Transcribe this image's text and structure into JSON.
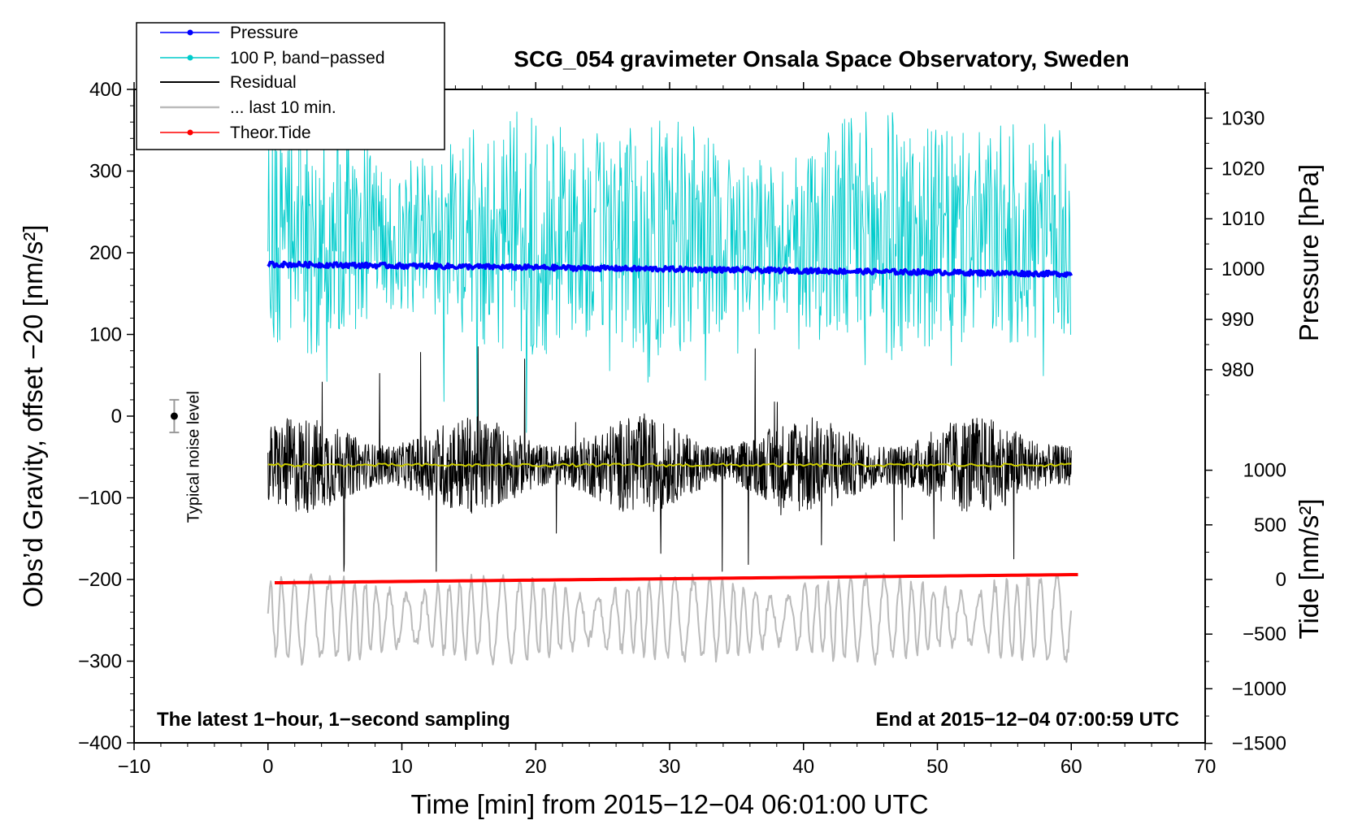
{
  "chart_data": {
    "type": "line",
    "title": "SCG_054 gravimeter Onsala Space Observatory, Sweden",
    "xlabel": "Time [min] from 2015−12−04 06:01:00 UTC",
    "ylabel": "Obs’d Gravity, offset −20 [nm/s²]",
    "ylabel_right_top": "Pressure [hPa]",
    "ylabel_right_bottom": "Tide [nm/s²]",
    "xlim": [
      -10,
      70
    ],
    "ylim": [
      -400,
      400
    ],
    "xticks": [
      -10,
      0,
      10,
      20,
      30,
      40,
      50,
      60,
      70
    ],
    "xtick_labels": [
      "−10",
      "0",
      "10",
      "20",
      "30",
      "40",
      "50",
      "60",
      "70"
    ],
    "yticks": [
      400,
      300,
      200,
      100,
      0,
      -100,
      -200,
      -300,
      -400
    ],
    "ytick_labels": [
      "400",
      "300",
      "200",
      "100",
      "0",
      "−100",
      "−200",
      "−300",
      "−400"
    ],
    "pressure_axis": {
      "gravity_per_hpa": 2.0,
      "offset_at_1000hpa": 180,
      "ticks": [
        1030,
        1020,
        1010,
        1000,
        990,
        980
      ],
      "tick_labels": [
        "1030",
        "1020",
        "1010",
        "1000",
        "990",
        "980"
      ]
    },
    "tide_axis": {
      "gravity_per_nms2": 0.0535,
      "offset_at_zero": -200,
      "ticks": [
        1000,
        500,
        0,
        -500,
        -1000,
        -1500
      ],
      "tick_labels": [
        "1000",
        "500",
        "0",
        "−500",
        "−1000",
        "−1500"
      ]
    },
    "legend": {
      "position": "top-left",
      "entries": [
        {
          "label": "Pressure",
          "color": "#0000ff",
          "marker": true
        },
        {
          "label": "100 P, band−passed",
          "color": "#00cccc",
          "marker": true
        },
        {
          "label": "Residual",
          "color": "#000000",
          "marker": false
        },
        {
          "label": "... last 10 min.",
          "color": "#bbbbbb",
          "marker": false
        },
        {
          "label": "Theor.Tide",
          "color": "#ff0000",
          "marker": true
        }
      ]
    },
    "series": [
      {
        "name": "Pressure",
        "color": "#0000ff",
        "x_range": [
          0,
          60
        ],
        "y_start": 186,
        "y_end": 174,
        "unit": "gravity-scale"
      },
      {
        "name": "100 P, band−passed",
        "color": "#00cccc",
        "x_range": [
          0,
          60
        ],
        "center": 220,
        "amplitude": 140,
        "unit": "gravity-scale"
      },
      {
        "name": "Residual",
        "color": "#000000",
        "x_range": [
          0,
          60
        ],
        "center": -60,
        "amplitude": 60,
        "unit": "gravity-scale"
      },
      {
        "name": "Residual smoothed",
        "color": "#cccc00",
        "x_range": [
          0,
          60
        ],
        "center": -60,
        "amplitude": 2,
        "unit": "gravity-scale"
      },
      {
        "name": "... last 10 min.",
        "color": "#bbbbbb",
        "x_range": [
          0,
          60
        ],
        "center": -248,
        "amplitude": 50,
        "unit": "gravity-scale"
      },
      {
        "name": "Theor.Tide",
        "color": "#ff0000",
        "x_range": [
          0.5,
          60.5
        ],
        "y_start": -204,
        "y_end": -194,
        "unit": "gravity-scale"
      }
    ],
    "noise_marker": {
      "x": -7,
      "y": 0,
      "err": 20,
      "label": "Typical noise level"
    },
    "annotations": {
      "bottom_left": "The latest 1−hour, 1−second sampling",
      "bottom_right": "End at 2015−12−04 07:00:59 UTC"
    }
  }
}
